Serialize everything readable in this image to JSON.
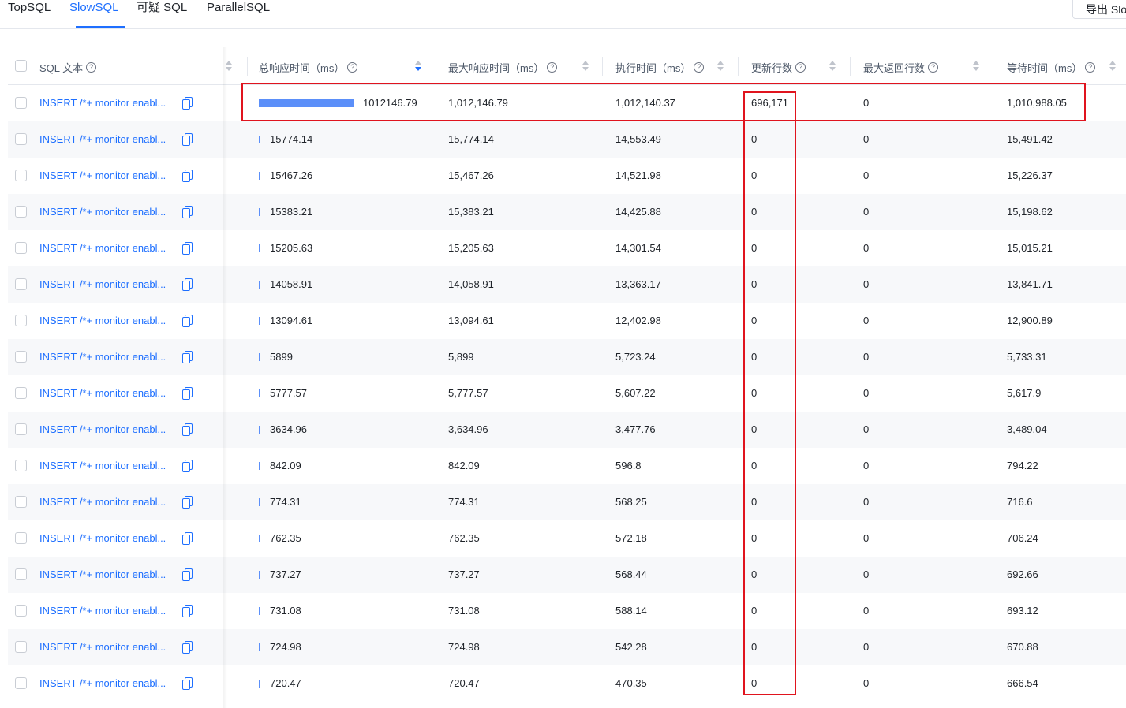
{
  "tabs": [
    {
      "label": "TopSQL"
    },
    {
      "label": "SlowSQL",
      "active": true
    },
    {
      "label": "可疑 SQL"
    },
    {
      "label": "ParallelSQL"
    }
  ],
  "export_button": "导出 Slo",
  "colors": {
    "accent": "#1e6fff",
    "bar": "#5b8ff9",
    "highlight": "#e0141e"
  },
  "columns": [
    {
      "label": "SQL 文本",
      "help": "?"
    },
    {
      "label": "总响应时间（ms）",
      "help": "?",
      "sort": "desc"
    },
    {
      "label": "最大响应时间（ms）",
      "help": "?"
    },
    {
      "label": "执行时间（ms）",
      "help": "?"
    },
    {
      "label": "更新行数",
      "help": "?"
    },
    {
      "label": "最大返回行数",
      "help": "?"
    },
    {
      "label": "等待时间（ms）",
      "help": "?"
    }
  ],
  "rows": [
    {
      "sql": "INSERT /*+ monitor enabl...",
      "total": "1012146.79",
      "total_value": 1012146.79,
      "max": "1,012,146.79",
      "exec": "1,012,140.37",
      "updated": "696,171",
      "returned": "0",
      "wait": "1,010,988.05"
    },
    {
      "sql": "INSERT /*+ monitor enabl...",
      "total": "15774.14",
      "total_value": 15774.14,
      "max": "15,774.14",
      "exec": "14,553.49",
      "updated": "0",
      "returned": "0",
      "wait": "15,491.42"
    },
    {
      "sql": "INSERT /*+ monitor enabl...",
      "total": "15467.26",
      "total_value": 15467.26,
      "max": "15,467.26",
      "exec": "14,521.98",
      "updated": "0",
      "returned": "0",
      "wait": "15,226.37"
    },
    {
      "sql": "INSERT /*+ monitor enabl...",
      "total": "15383.21",
      "total_value": 15383.21,
      "max": "15,383.21",
      "exec": "14,425.88",
      "updated": "0",
      "returned": "0",
      "wait": "15,198.62"
    },
    {
      "sql": "INSERT /*+ monitor enabl...",
      "total": "15205.63",
      "total_value": 15205.63,
      "max": "15,205.63",
      "exec": "14,301.54",
      "updated": "0",
      "returned": "0",
      "wait": "15,015.21"
    },
    {
      "sql": "INSERT /*+ monitor enabl...",
      "total": "14058.91",
      "total_value": 14058.91,
      "max": "14,058.91",
      "exec": "13,363.17",
      "updated": "0",
      "returned": "0",
      "wait": "13,841.71"
    },
    {
      "sql": "INSERT /*+ monitor enabl...",
      "total": "13094.61",
      "total_value": 13094.61,
      "max": "13,094.61",
      "exec": "12,402.98",
      "updated": "0",
      "returned": "0",
      "wait": "12,900.89"
    },
    {
      "sql": "INSERT /*+ monitor enabl...",
      "total": "5899",
      "total_value": 5899,
      "max": "5,899",
      "exec": "5,723.24",
      "updated": "0",
      "returned": "0",
      "wait": "5,733.31"
    },
    {
      "sql": "INSERT /*+ monitor enabl...",
      "total": "5777.57",
      "total_value": 5777.57,
      "max": "5,777.57",
      "exec": "5,607.22",
      "updated": "0",
      "returned": "0",
      "wait": "5,617.9"
    },
    {
      "sql": "INSERT /*+ monitor enabl...",
      "total": "3634.96",
      "total_value": 3634.96,
      "max": "3,634.96",
      "exec": "3,477.76",
      "updated": "0",
      "returned": "0",
      "wait": "3,489.04"
    },
    {
      "sql": "INSERT /*+ monitor enabl...",
      "total": "842.09",
      "total_value": 842.09,
      "max": "842.09",
      "exec": "596.8",
      "updated": "0",
      "returned": "0",
      "wait": "794.22"
    },
    {
      "sql": "INSERT /*+ monitor enabl...",
      "total": "774.31",
      "total_value": 774.31,
      "max": "774.31",
      "exec": "568.25",
      "updated": "0",
      "returned": "0",
      "wait": "716.6"
    },
    {
      "sql": "INSERT /*+ monitor enabl...",
      "total": "762.35",
      "total_value": 762.35,
      "max": "762.35",
      "exec": "572.18",
      "updated": "0",
      "returned": "0",
      "wait": "706.24"
    },
    {
      "sql": "INSERT /*+ monitor enabl...",
      "total": "737.27",
      "total_value": 737.27,
      "max": "737.27",
      "exec": "568.44",
      "updated": "0",
      "returned": "0",
      "wait": "692.66"
    },
    {
      "sql": "INSERT /*+ monitor enabl...",
      "total": "731.08",
      "total_value": 731.08,
      "max": "731.08",
      "exec": "588.14",
      "updated": "0",
      "returned": "0",
      "wait": "693.12"
    },
    {
      "sql": "INSERT /*+ monitor enabl...",
      "total": "724.98",
      "total_value": 724.98,
      "max": "724.98",
      "exec": "542.28",
      "updated": "0",
      "returned": "0",
      "wait": "670.88"
    },
    {
      "sql": "INSERT /*+ monitor enabl...",
      "total": "720.47",
      "total_value": 720.47,
      "max": "720.47",
      "exec": "470.35",
      "updated": "0",
      "returned": "0",
      "wait": "666.54"
    }
  ]
}
